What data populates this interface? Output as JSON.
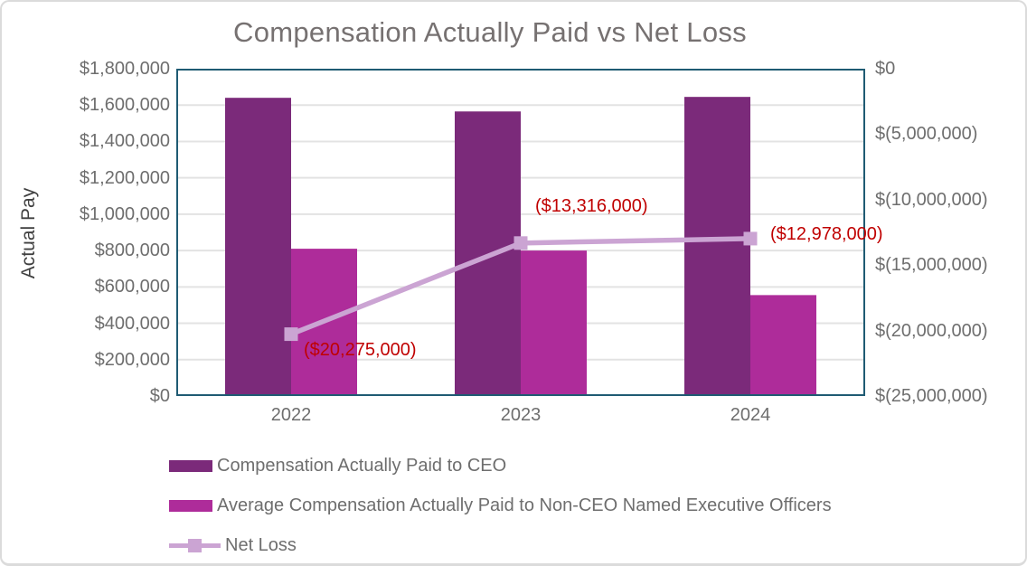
{
  "chart_data": {
    "type": "combo-bar-line",
    "title": "Compensation Actually Paid vs Net Loss",
    "categories": [
      "2022",
      "2023",
      "2024"
    ],
    "series": [
      {
        "name": "Compensation Actually Paid to CEO",
        "type": "bar",
        "axis": "left",
        "color": "#7B2A7A",
        "values": [
          1640000,
          1565000,
          1645000
        ]
      },
      {
        "name": "Average Compensation Actually Paid to Non-CEO Named Executive Officers",
        "type": "bar",
        "axis": "left",
        "color": "#AE2C9A",
        "values": [
          810000,
          800000,
          555000
        ]
      },
      {
        "name": "Net Loss",
        "type": "line",
        "axis": "right",
        "color": "#CBA4D3",
        "values": [
          -20275000,
          -13316000,
          -12978000
        ],
        "data_labels": [
          "($20,275,000)",
          "($13,316,000)",
          "($12,978,000)"
        ],
        "data_label_color": "#C00000"
      }
    ],
    "left_axis": {
      "title": "Actual Pay",
      "min": 0,
      "max": 1800000,
      "step": 200000,
      "ticks": [
        "$1,800,000",
        "$1,600,000",
        "$1,400,000",
        "$1,200,000",
        "$1,000,000",
        "$800,000",
        "$600,000",
        "$400,000",
        "$200,000",
        "$0"
      ]
    },
    "right_axis": {
      "min": -25000000,
      "max": 0,
      "step": 5000000,
      "ticks": [
        "$0",
        "$(5,000,000)",
        "$(10,000,000)",
        "$(15,000,000)",
        "$(20,000,000)",
        "$(25,000,000)"
      ]
    },
    "grid": true,
    "legend_position": "bottom-left",
    "colors": {
      "plot_border": "#1F5B73",
      "gridline": "#E3E3E3",
      "axis_text": "#6E6E6E",
      "title_text": "#767171",
      "axis_title_text": "#404040",
      "label_red": "#C00000"
    }
  }
}
